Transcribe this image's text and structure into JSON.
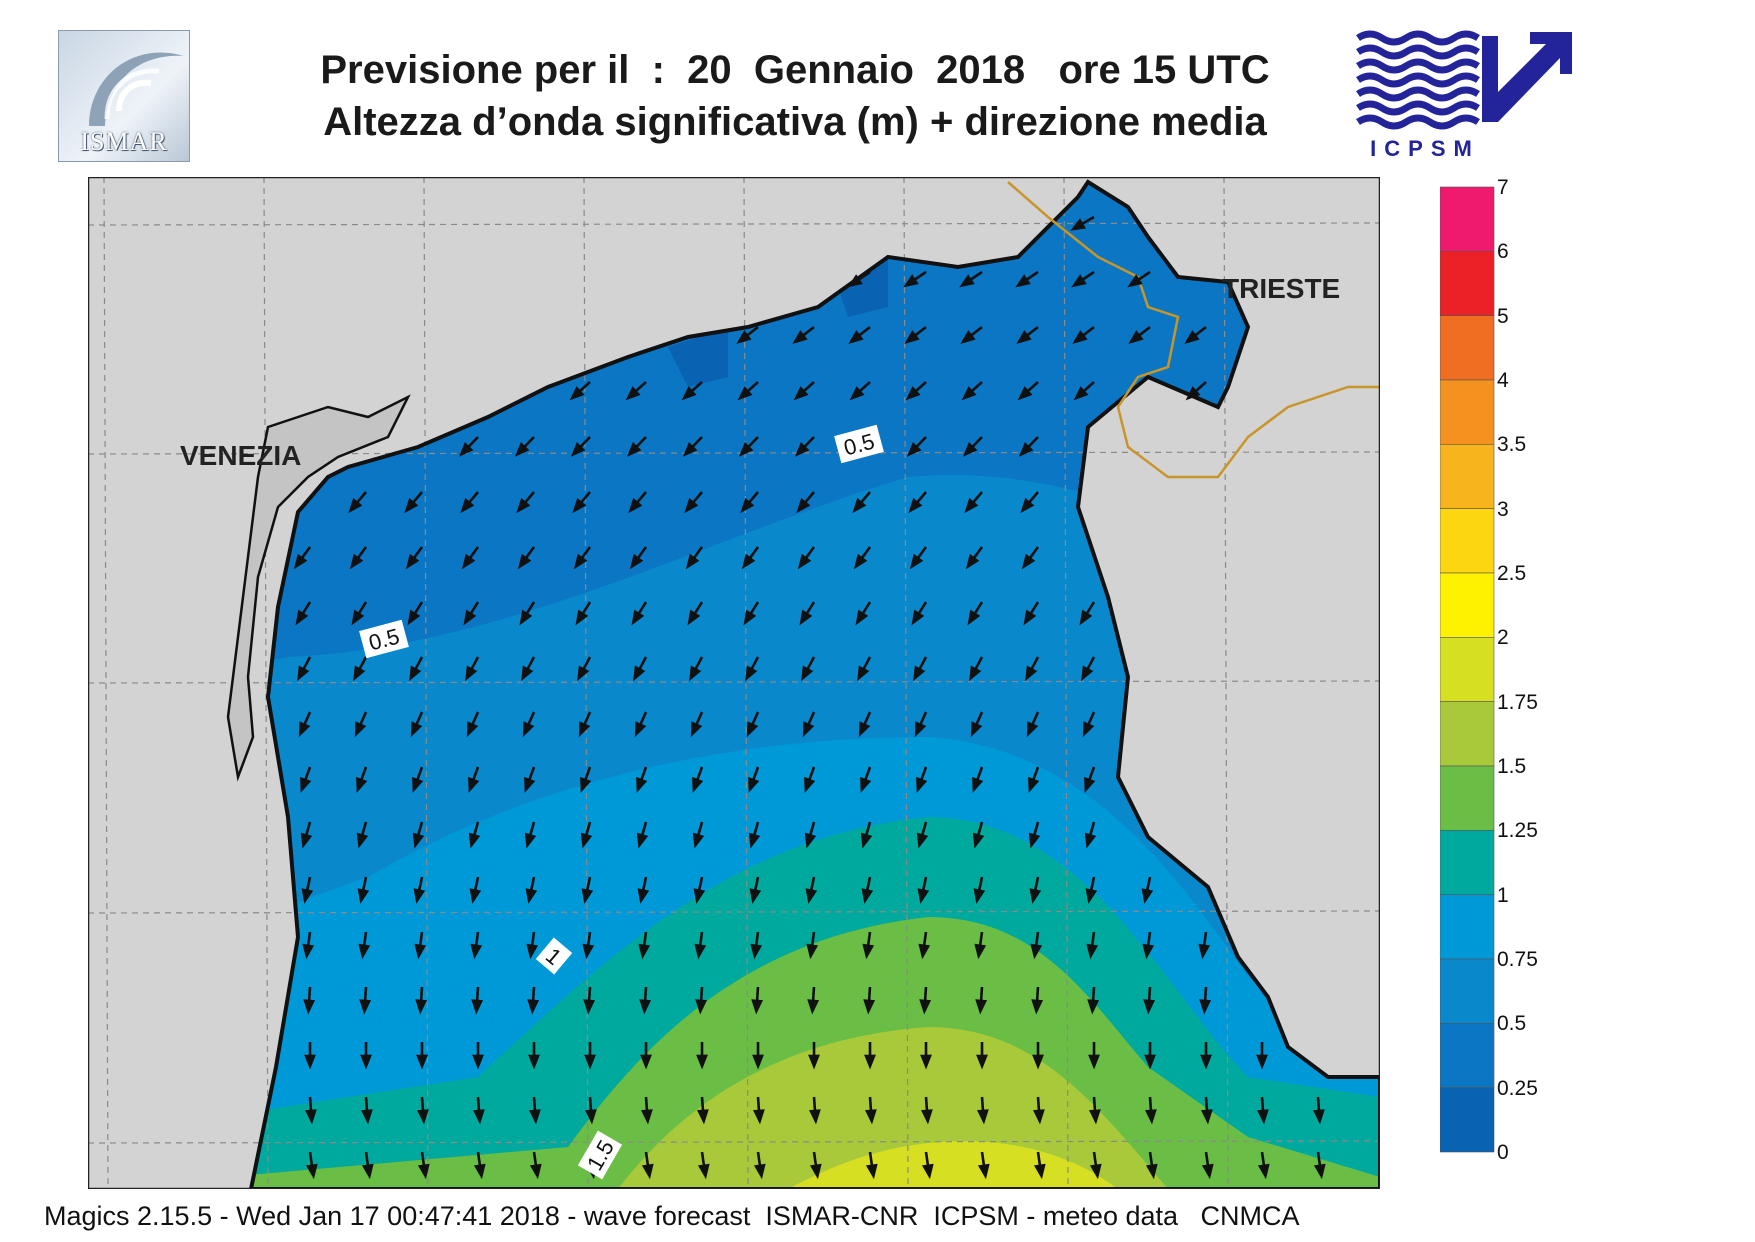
{
  "header": {
    "title_line1": "Previsione per il  :  20  Gennaio  2018   ore 15 UTC",
    "title_line2": "Altezza d’onda significativa (m) + direzione media",
    "logo_left_text": "ISMAR",
    "logo_right_text": "ICPSM"
  },
  "map": {
    "cities": [
      {
        "name": "VENEZIA"
      },
      {
        "name": "TRIESTE"
      }
    ],
    "contour_labels": [
      "0.5",
      "0.5",
      "1",
      "1.5"
    ],
    "colors": {
      "land": "#d3d3d3",
      "coastline": "#111111",
      "border": "#c8952a",
      "grid": "#8a8a8a"
    },
    "wave_direction": "mean direction arrows pointing south-west / south"
  },
  "colorbar": {
    "labels": [
      "7",
      "6",
      "5",
      "4",
      "3.5",
      "3",
      "2.5",
      "2",
      "1.75",
      "1.5",
      "1.25",
      "1",
      "0.75",
      "0.5",
      "0.25",
      "0"
    ],
    "colors": [
      "#ef1a6e",
      "#ec2127",
      "#f06e22",
      "#f4921f",
      "#f8b41c",
      "#fcd611",
      "#fff200",
      "#d7df23",
      "#a8c93a",
      "#6abd45",
      "#00a99d",
      "#0099d8",
      "#0a88cc",
      "#0b77c4",
      "#0a62b3"
    ]
  },
  "footer": {
    "text": "Magics 2.15.5 - Wed Jan 17 00:47:41 2018 - wave forecast  ISMAR-CNR  ICPSM - meteo data   CNMCA"
  }
}
